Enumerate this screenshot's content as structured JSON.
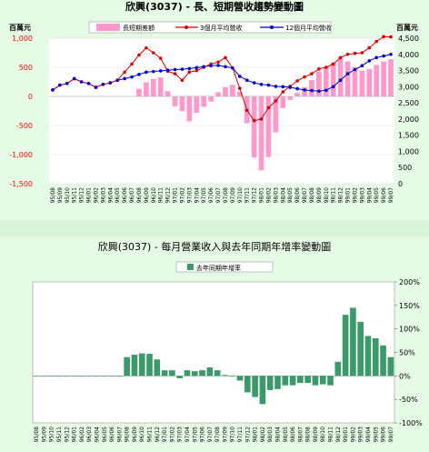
{
  "chart_data": [
    {
      "type": "bar+line",
      "title": "欣興(3037) - 長、短期營收趨勢變動圖",
      "left_unit": "百萬元",
      "right_unit": "百萬元",
      "left_axis": {
        "min": -1500,
        "max": 1000,
        "ticks": [
          "1,000",
          "500",
          "0",
          "-500",
          "-1,000",
          "-1,500"
        ],
        "tick_values": [
          1000,
          500,
          0,
          -500,
          -1000,
          -1500
        ]
      },
      "right_axis": {
        "min": 0,
        "max": 4500,
        "ticks": [
          "4,500",
          "4,000",
          "3,500",
          "3,000",
          "2,500",
          "2,000",
          "1,500",
          "1,000",
          "500",
          "0"
        ],
        "tick_values": [
          4500,
          4000,
          3500,
          3000,
          2500,
          2000,
          1500,
          1000,
          500,
          0
        ]
      },
      "legend": [
        "長短期差額",
        "3個月平均營收",
        "12個月平均營收"
      ],
      "colors": {
        "bar": "#ff99cc",
        "line3": "#dd0000",
        "line12": "#0000cc"
      },
      "x": [
        "95/08",
        "95/09",
        "95/10",
        "95/11",
        "95/12",
        "96/01",
        "96/02",
        "96/03",
        "96/04",
        "96/05",
        "96/06",
        "96/07",
        "96/08",
        "96/09",
        "96/10",
        "96/11",
        "96/12",
        "97/01",
        "97/02",
        "97/03",
        "97/04",
        "97/05",
        "97/06",
        "97/07",
        "97/08",
        "97/09",
        "97/10",
        "97/11",
        "97/12",
        "98/01",
        "98/02",
        "98/03",
        "98/04",
        "98/05",
        "98/06",
        "98/07",
        "98/08",
        "98/09",
        "98/10",
        "98/11",
        "98/12",
        "99/01",
        "99/02",
        "99/03",
        "99/04",
        "99/05",
        "99/06",
        "99/07"
      ],
      "series": [
        {
          "name": "長短期差額",
          "axis": "left",
          "kind": "bar",
          "values": [
            0,
            0,
            0,
            0,
            0,
            0,
            0,
            0,
            0,
            0,
            0,
            0,
            130,
            240,
            300,
            330,
            90,
            -170,
            -250,
            -430,
            -280,
            -180,
            -90,
            70,
            160,
            200,
            80,
            -460,
            -1050,
            -1270,
            -1040,
            -620,
            -200,
            -60,
            60,
            160,
            280,
            430,
            500,
            580,
            650,
            600,
            500,
            440,
            470,
            540,
            600,
            640
          ]
        },
        {
          "name": "3個月平均營收",
          "axis": "right",
          "kind": "line",
          "values": [
            2900,
            3050,
            3100,
            3250,
            3150,
            3100,
            2980,
            3070,
            3120,
            3200,
            3450,
            3700,
            3980,
            4200,
            4050,
            3880,
            3480,
            3400,
            3200,
            3450,
            3500,
            3600,
            3700,
            3760,
            3900,
            3580,
            2950,
            2270,
            1950,
            2000,
            2350,
            2560,
            2840,
            3010,
            3180,
            3300,
            3400,
            3550,
            3600,
            3700,
            3900,
            4000,
            4030,
            4050,
            4200,
            4400,
            4550,
            4540
          ]
        },
        {
          "name": "12個月平均營收",
          "axis": "right",
          "kind": "line",
          "values": [
            2900,
            3050,
            3100,
            3250,
            3150,
            3100,
            2980,
            3070,
            3120,
            3200,
            3250,
            3300,
            3380,
            3450,
            3470,
            3490,
            3510,
            3530,
            3540,
            3560,
            3590,
            3620,
            3650,
            3660,
            3620,
            3580,
            3320,
            3200,
            3120,
            3070,
            3050,
            3010,
            3000,
            2980,
            2940,
            2900,
            2880,
            2860,
            2890,
            3000,
            3200,
            3400,
            3530,
            3650,
            3800,
            3900,
            3950,
            4000
          ]
        }
      ]
    },
    {
      "type": "bar",
      "title": "欣興(3037) - 每月營業收入與去年同期年增率變動圖",
      "legend": [
        "去年同期年增率"
      ],
      "colors": {
        "bar": "#3a9a6a"
      },
      "right_axis": {
        "min": -100,
        "max": 200,
        "ticks": [
          "200%",
          "150%",
          "100%",
          "50%",
          "0%",
          "-50%",
          "-100%"
        ],
        "tick_values": [
          200,
          150,
          100,
          50,
          0,
          -50,
          -100
        ]
      },
      "x": [
        "95/08",
        "95/09",
        "95/10",
        "95/11",
        "95/12",
        "96/01",
        "96/02",
        "96/03",
        "96/04",
        "96/05",
        "96/06",
        "96/07",
        "96/08",
        "96/09",
        "96/10",
        "96/11",
        "96/12",
        "97/01",
        "97/02",
        "97/03",
        "97/04",
        "97/05",
        "97/06",
        "97/07",
        "97/08",
        "97/09",
        "97/10",
        "97/11",
        "97/12",
        "98/01",
        "98/02",
        "98/03",
        "98/04",
        "98/05",
        "98/06",
        "98/07",
        "98/08",
        "98/09",
        "98/10",
        "98/11",
        "98/12",
        "99/01",
        "99/02",
        "99/03",
        "99/04",
        "99/05",
        "99/06",
        "99/07"
      ],
      "values": [
        0,
        0,
        0,
        0,
        0,
        0,
        0,
        0,
        0,
        0,
        0,
        0,
        40,
        45,
        48,
        47,
        35,
        12,
        12,
        -5,
        12,
        10,
        12,
        18,
        12,
        2,
        0,
        -10,
        -35,
        -45,
        -60,
        -30,
        -28,
        -20,
        -20,
        -15,
        -15,
        -20,
        -18,
        -20,
        30,
        130,
        145,
        115,
        85,
        80,
        65,
        40
      ]
    }
  ]
}
